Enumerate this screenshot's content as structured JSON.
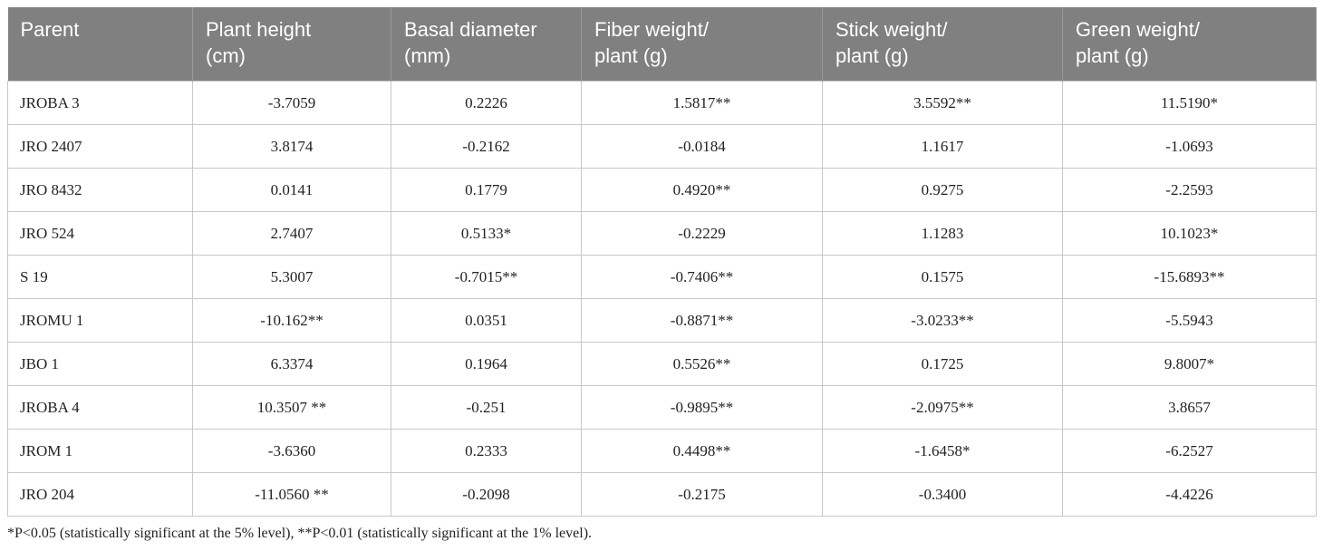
{
  "table": {
    "columns": [
      "Parent",
      "Plant height (cm)",
      "Basal diameter (mm)",
      "Fiber weight/ plant (g)",
      "Stick weight/ plant (g)",
      "Green weight/ plant (g)"
    ],
    "rows": [
      [
        "JROBA 3",
        "-3.7059",
        "0.2226",
        "1.5817**",
        "3.5592**",
        "11.5190*"
      ],
      [
        "JRO 2407",
        "3.8174",
        "-0.2162",
        "-0.0184",
        "1.1617",
        "-1.0693"
      ],
      [
        "JRO 8432",
        "0.0141",
        "0.1779",
        "0.4920**",
        "0.9275",
        "-2.2593"
      ],
      [
        "JRO 524",
        "2.7407",
        "0.5133*",
        "-0.2229",
        "1.1283",
        "10.1023*"
      ],
      [
        "S 19",
        "5.3007",
        "-0.7015**",
        "-0.7406**",
        "0.1575",
        "-15.6893**"
      ],
      [
        "JROMU 1",
        "-10.162**",
        "0.0351",
        "-0.8871**",
        "-3.0233**",
        "-5.5943"
      ],
      [
        "JBO 1",
        "6.3374",
        "0.1964",
        "0.5526**",
        "0.1725",
        "9.8007*"
      ],
      [
        "JROBA 4",
        "10.3507 **",
        "-0.251",
        "-0.9895**",
        "-2.0975**",
        "3.8657"
      ],
      [
        "JROM 1",
        "-3.6360",
        "0.2333",
        "0.4498**",
        "-1.6458*",
        "-6.2527"
      ],
      [
        "JRO 204",
        "-11.0560 **",
        "-0.2098",
        "-0.2175",
        "-0.3400",
        "-4.4226"
      ]
    ]
  },
  "footnote": "*P<0.05 (statistically significant at the 5% level), **P<0.01 (statistically significant at the 1% level)."
}
